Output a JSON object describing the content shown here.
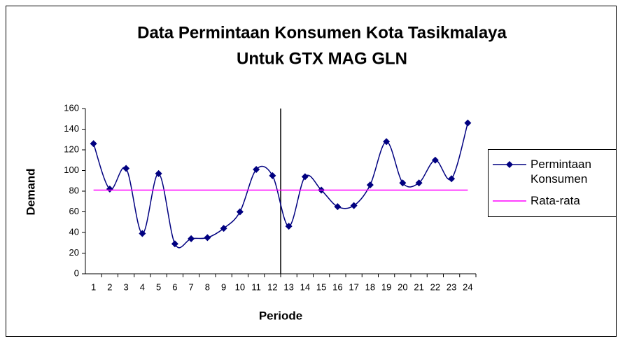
{
  "chart_data": {
    "type": "line",
    "title": [
      "Data Permintaan Konsumen Kota Tasikmalaya",
      "Untuk GTX MAG GLN"
    ],
    "x_label": "Periode",
    "y_label": "Demand",
    "categories": [
      "1",
      "2",
      "3",
      "4",
      "5",
      "6",
      "7",
      "8",
      "9",
      "10",
      "11",
      "12",
      "13",
      "14",
      "15",
      "16",
      "17",
      "18",
      "19",
      "20",
      "21",
      "22",
      "23",
      "24"
    ],
    "series": [
      {
        "name": "Permintaan Konsumen",
        "color": "#000080",
        "marker": "diamond",
        "smooth": true,
        "values": [
          126,
          82,
          102,
          39,
          97,
          29,
          34,
          35,
          44,
          60,
          101,
          95,
          46,
          94,
          81,
          65,
          66,
          86,
          128,
          88,
          88,
          110,
          92,
          146
        ]
      },
      {
        "name": "Rata-rata",
        "color": "#ff00ff",
        "marker": "none",
        "smooth": false,
        "values": [
          81,
          81,
          81,
          81,
          81,
          81,
          81,
          81,
          81,
          81,
          81,
          81,
          81,
          81,
          81,
          81,
          81,
          81,
          81,
          81,
          81,
          81,
          81,
          81
        ]
      }
    ],
    "vline_x": 12.5,
    "ylim": [
      0,
      160
    ],
    "yticks": [
      0,
      20,
      40,
      60,
      80,
      100,
      120,
      140,
      160
    ],
    "grid": false,
    "legend": "right"
  }
}
